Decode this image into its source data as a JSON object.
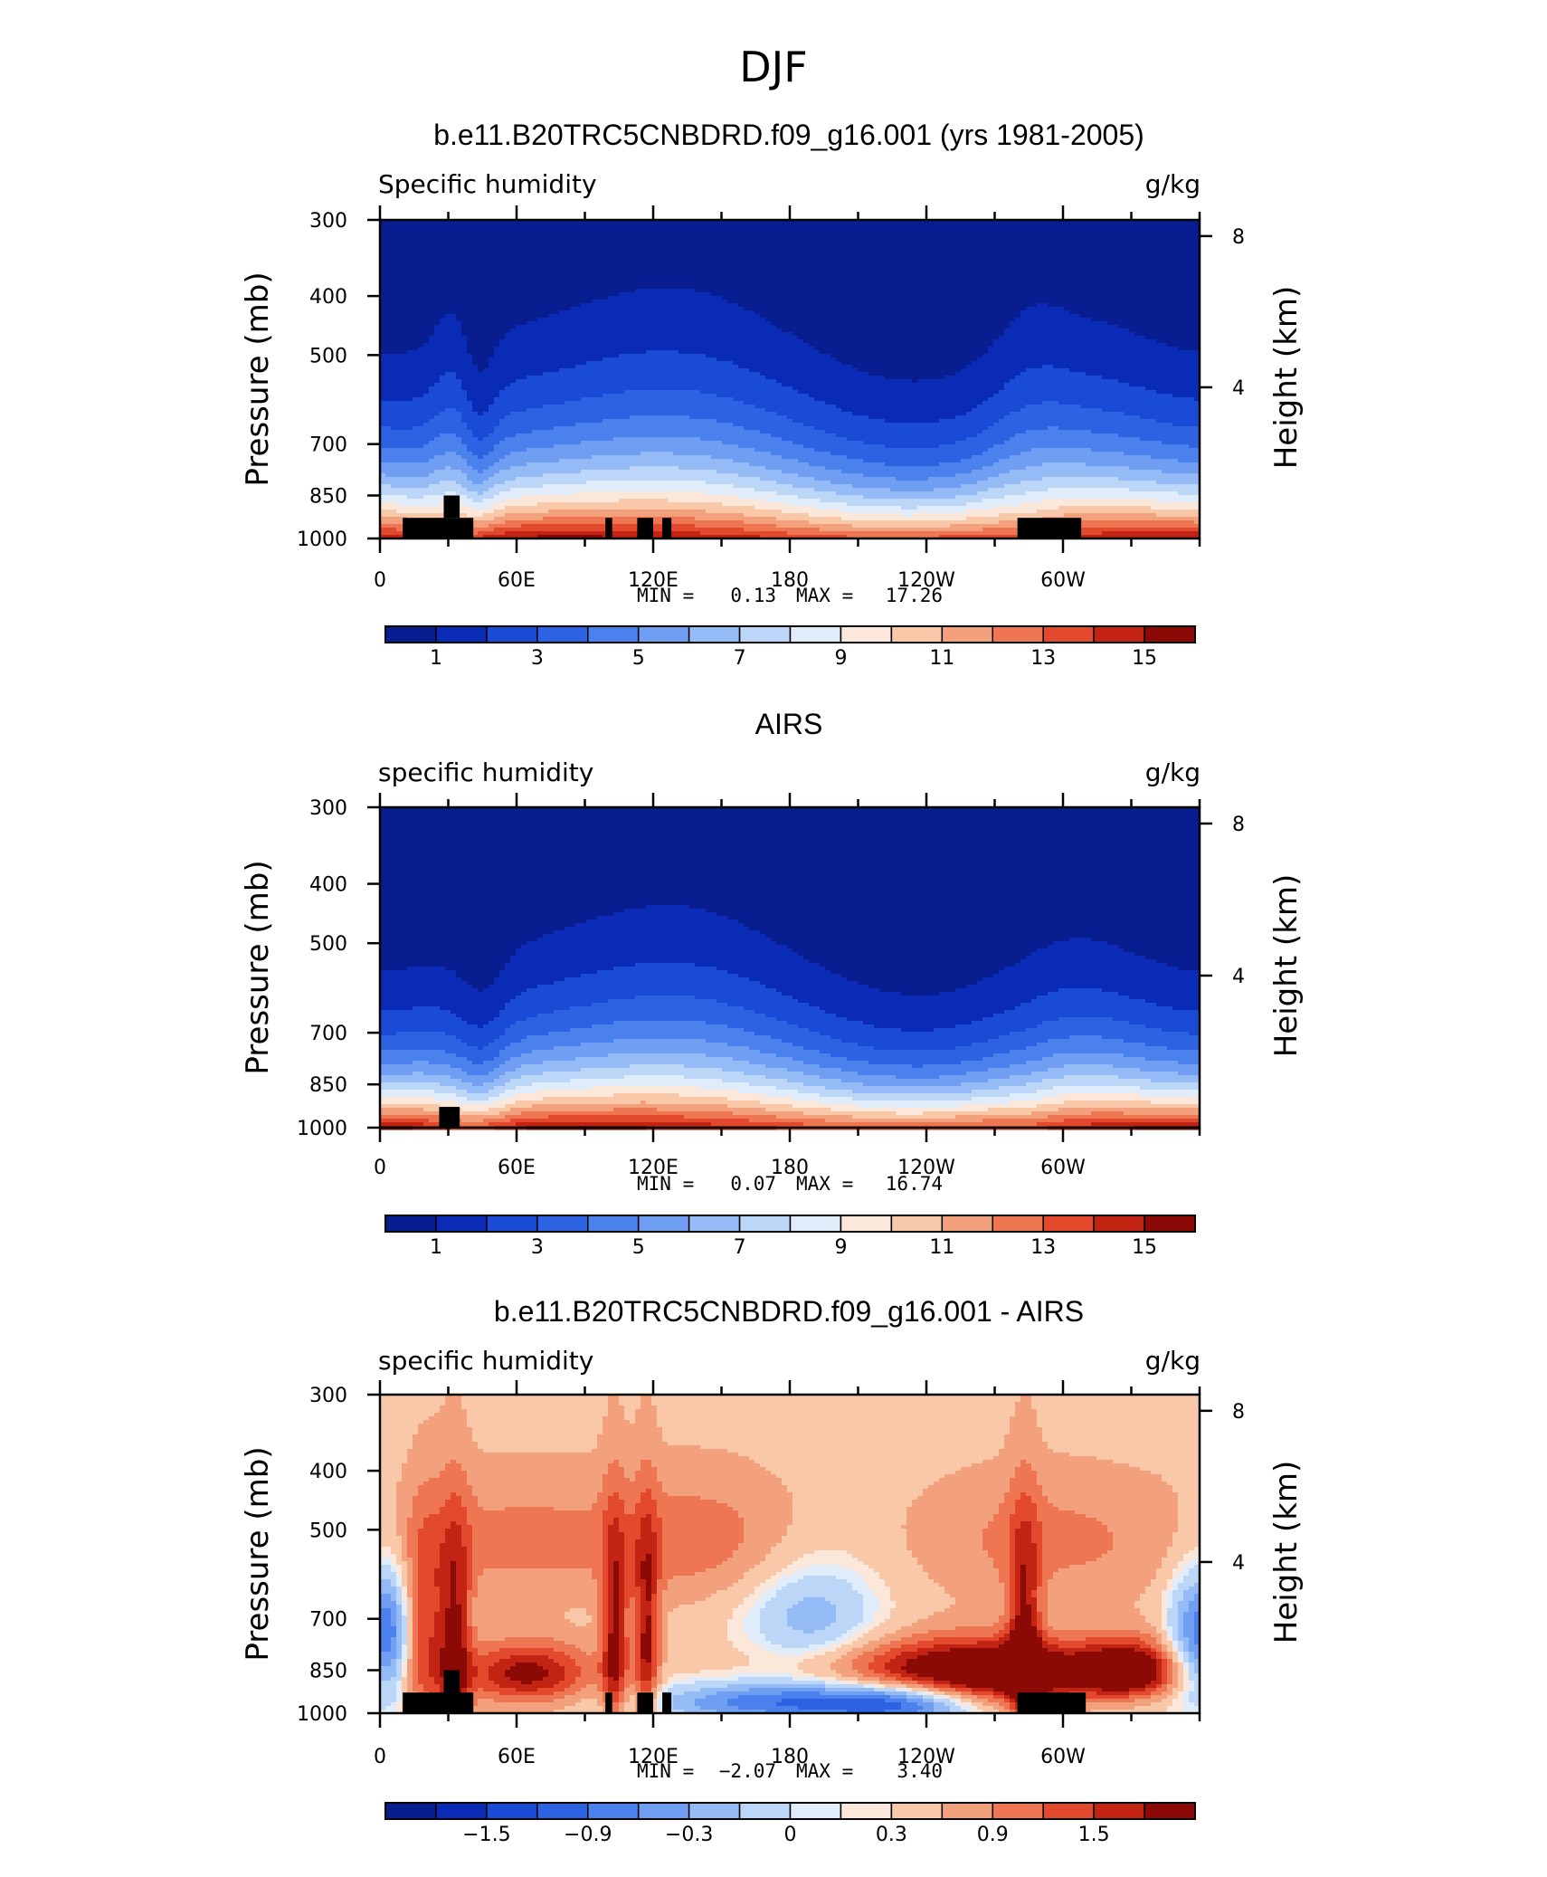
{
  "main_title": "DJF",
  "colors": {
    "seq": [
      "#081d8f",
      "#0a2bb6",
      "#1a4bd6",
      "#2d63e3",
      "#4a81ec",
      "#6f9ef2",
      "#95bbf6",
      "#bcd6f8",
      "#e1ecfa",
      "#fce8da",
      "#f8c8a9",
      "#f3a07d",
      "#ee7652",
      "#e3492c",
      "#c22313",
      "#8c0a05"
    ],
    "div": [
      "#081d8f",
      "#0a2bb6",
      "#1a4bd6",
      "#2d63e3",
      "#4a81ec",
      "#6f9ef2",
      "#95bbf6",
      "#bcd6f8",
      "#e1ecfa",
      "#fce8da",
      "#f8c8a9",
      "#f3a07d",
      "#ee7652",
      "#e3492c",
      "#c22313",
      "#8c0a05"
    ],
    "land": "#000000"
  },
  "chart_data": [
    {
      "type": "heatmap",
      "id": "model",
      "title": "b.e11.B20TRC5CNBDRD.f09_g16.001 (yrs 1981-2005)",
      "left_label": "Specific humidity",
      "right_label": "g/kg",
      "ylabel": "Pressure (mb)",
      "ylabel_right": "Height (km)",
      "x_ticks": [
        "0",
        "60E",
        "120E",
        "180",
        "120W",
        "60W"
      ],
      "x_tick_values": [
        0,
        60,
        120,
        180,
        240,
        300
      ],
      "xlim": [
        0,
        360
      ],
      "y_ticks": [
        "300",
        "400",
        "500",
        "700",
        "850",
        "1000"
      ],
      "y_tick_values": [
        300,
        400,
        500,
        700,
        850,
        1000
      ],
      "ylim": [
        1000,
        300
      ],
      "height_ticks": [
        "8",
        "4"
      ],
      "height_tick_values": [
        8,
        4
      ],
      "stats": {
        "min_label": "MIN =",
        "min": "0.13",
        "max_label": "MAX =",
        "max": "17.26"
      },
      "colorbar_labels": [
        "1",
        "3",
        "5",
        "7",
        "9",
        "11",
        "13",
        "15"
      ],
      "z_range": [
        0.13,
        17.26
      ],
      "levels": [
        1,
        2,
        3,
        4,
        5,
        6,
        7,
        8,
        9,
        10,
        11,
        12,
        13,
        14,
        15
      ],
      "field": "seq_model",
      "land_blocks": [
        [
          10,
          30,
          1000,
          925
        ],
        [
          28,
          35,
          925,
          850
        ],
        [
          30,
          41,
          1000,
          925
        ],
        [
          99,
          102,
          1000,
          925
        ],
        [
          113,
          120,
          1000,
          925
        ],
        [
          124,
          128,
          1000,
          925
        ],
        [
          280,
          308,
          1000,
          925
        ]
      ]
    },
    {
      "type": "heatmap",
      "id": "obs",
      "title": "AIRS",
      "left_label": "specific humidity",
      "right_label": "g/kg",
      "ylabel": "Pressure (mb)",
      "ylabel_right": "Height (km)",
      "x_ticks": [
        "0",
        "60E",
        "120E",
        "180",
        "120W",
        "60W"
      ],
      "x_tick_values": [
        0,
        60,
        120,
        180,
        240,
        300
      ],
      "xlim": [
        0,
        360
      ],
      "y_ticks": [
        "300",
        "400",
        "500",
        "700",
        "850",
        "1000"
      ],
      "y_tick_values": [
        300,
        400,
        500,
        700,
        850,
        1000
      ],
      "ylim": [
        1000,
        300
      ],
      "height_ticks": [
        "8",
        "4"
      ],
      "height_tick_values": [
        8,
        4
      ],
      "stats": {
        "min_label": "MIN =",
        "min": "0.07",
        "max_label": "MAX =",
        "max": "16.74"
      },
      "colorbar_labels": [
        "1",
        "3",
        "5",
        "7",
        "9",
        "11",
        "13",
        "15"
      ],
      "z_range": [
        0.07,
        16.74
      ],
      "levels": [
        1,
        2,
        3,
        4,
        5,
        6,
        7,
        8,
        9,
        10,
        11,
        12,
        13,
        14,
        15
      ],
      "field": "seq_obs",
      "land_blocks": [
        [
          26,
          35,
          1000,
          925
        ]
      ]
    },
    {
      "type": "heatmap",
      "id": "diff",
      "title": "b.e11.B20TRC5CNBDRD.f09_g16.001 - AIRS",
      "left_label": "specific humidity",
      "right_label": "g/kg",
      "ylabel": "Pressure (mb)",
      "ylabel_right": "Height (km)",
      "x_ticks": [
        "0",
        "60E",
        "120E",
        "180",
        "120W",
        "60W"
      ],
      "x_tick_values": [
        0,
        60,
        120,
        180,
        240,
        300
      ],
      "xlim": [
        0,
        360
      ],
      "y_ticks": [
        "300",
        "400",
        "500",
        "700",
        "850",
        "1000"
      ],
      "y_tick_values": [
        300,
        400,
        500,
        700,
        850,
        1000
      ],
      "ylim": [
        1000,
        300
      ],
      "height_ticks": [
        "8",
        "4"
      ],
      "height_tick_values": [
        8,
        4
      ],
      "stats": {
        "min_label": "MIN =",
        "min": "−2.07",
        "max_label": "MAX =",
        "max": "3.40"
      },
      "colorbar_labels": [
        "−1.5",
        "−0.9",
        "−0.3",
        "0",
        "0.3",
        "0.9",
        "1.5"
      ],
      "z_range": [
        -2.07,
        3.4
      ],
      "levels": [
        -2.1,
        -1.8,
        -1.5,
        -1.2,
        -0.9,
        -0.6,
        -0.3,
        0,
        0.15,
        0.3,
        0.6,
        0.9,
        1.2,
        1.5,
        1.8
      ],
      "field": "diff",
      "land_blocks": [
        [
          10,
          30,
          1000,
          925
        ],
        [
          28,
          35,
          925,
          850
        ],
        [
          30,
          41,
          1000,
          925
        ],
        [
          99,
          102,
          1000,
          925
        ],
        [
          113,
          120,
          1000,
          925
        ],
        [
          124,
          128,
          1000,
          925
        ],
        [
          280,
          310,
          1000,
          925
        ]
      ]
    }
  ]
}
